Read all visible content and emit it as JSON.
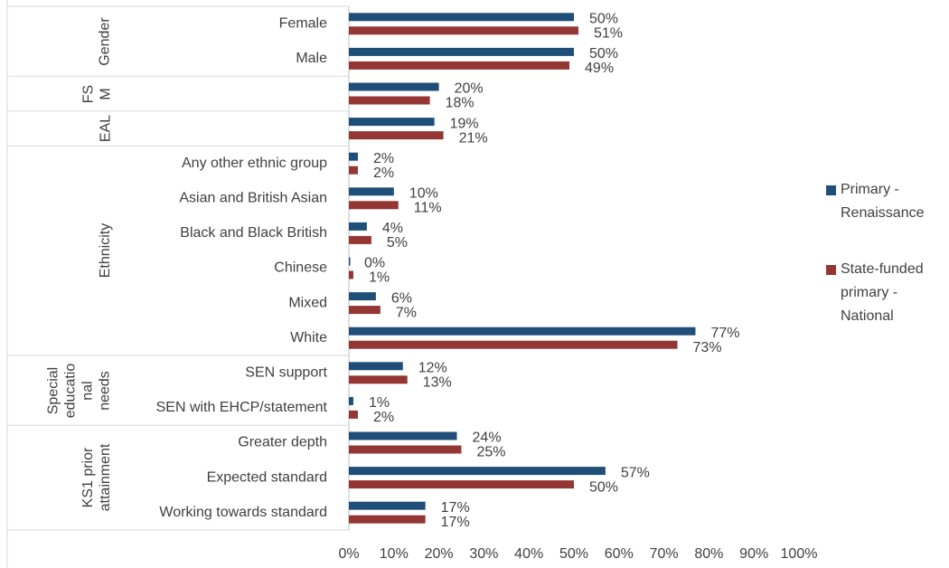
{
  "chart_data": {
    "type": "bar",
    "orientation": "horizontal",
    "groups": [
      {
        "label": "Gender",
        "categories": [
          "Female",
          "Male"
        ]
      },
      {
        "label": "FSM",
        "categories": [
          null
        ]
      },
      {
        "label": "EAL",
        "categories": [
          null
        ]
      },
      {
        "label": "Ethnicity",
        "categories": [
          "Any other ethnic group",
          "Asian and British Asian",
          "Black and Black British",
          "Chinese",
          "Mixed",
          "White"
        ]
      },
      {
        "label": "Special educational needs",
        "categories": [
          "SEN support",
          "SEN with EHCP/statement"
        ]
      },
      {
        "label": "KS1 prior attainment",
        "categories": [
          "Greater depth",
          "Expected standard",
          "Working towards standard"
        ]
      }
    ],
    "series": [
      {
        "name": "Primary - Renaissance",
        "color": "#1f4e79",
        "values": [
          50,
          50,
          20,
          19,
          2,
          10,
          4,
          0,
          6,
          77,
          12,
          1,
          24,
          57,
          17
        ],
        "value_labels": [
          "50%",
          "50%",
          "20%",
          "19%",
          "2%",
          "10%",
          "4%",
          "0%",
          "6%",
          "77%",
          "12%",
          "1%",
          "24%",
          "57%",
          "17%"
        ]
      },
      {
        "name": "State-funded primary - National",
        "color": "#943634",
        "values": [
          51,
          49,
          18,
          21,
          2,
          11,
          5,
          1,
          7,
          73,
          13,
          2,
          25,
          50,
          17
        ],
        "value_labels": [
          "51%",
          "49%",
          "18%",
          "21%",
          "2%",
          "11%",
          "5%",
          "1%",
          "7%",
          "73%",
          "13%",
          "2%",
          "25%",
          "50%",
          "17%"
        ]
      }
    ],
    "xlim": [
      0,
      100
    ],
    "xticks": [
      {
        "value": 0,
        "label": "0%"
      },
      {
        "value": 10,
        "label": "10%"
      },
      {
        "value": 20,
        "label": "20%"
      },
      {
        "value": 30,
        "label": "30%"
      },
      {
        "value": 40,
        "label": "40%"
      },
      {
        "value": 50,
        "label": "50%"
      },
      {
        "value": 60,
        "label": "60%"
      },
      {
        "value": 70,
        "label": "70%"
      },
      {
        "value": 80,
        "label": "80%"
      },
      {
        "value": 90,
        "label": "90%"
      },
      {
        "value": 100,
        "label": "100%"
      }
    ],
    "legend": "right",
    "grid": false
  }
}
